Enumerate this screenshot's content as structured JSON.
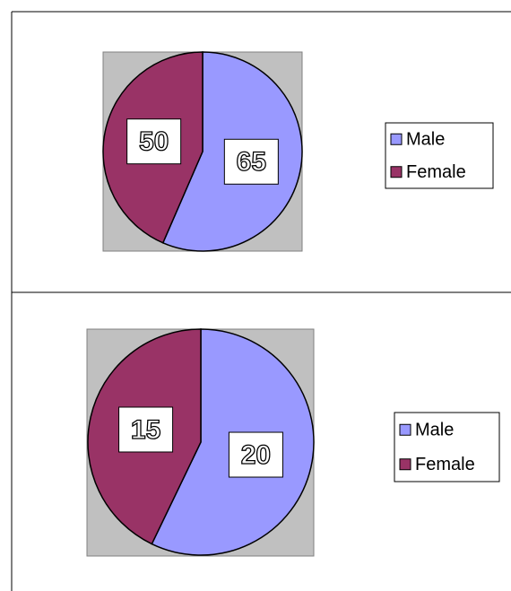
{
  "chart_data": [
    {
      "type": "pie",
      "categories": [
        "Male",
        "Female"
      ],
      "values": [
        65,
        50
      ],
      "colors": [
        "#9999ff",
        "#993366"
      ]
    },
    {
      "type": "pie",
      "categories": [
        "Male",
        "Female"
      ],
      "values": [
        20,
        15
      ],
      "colors": [
        "#9999ff",
        "#993366"
      ]
    }
  ]
}
